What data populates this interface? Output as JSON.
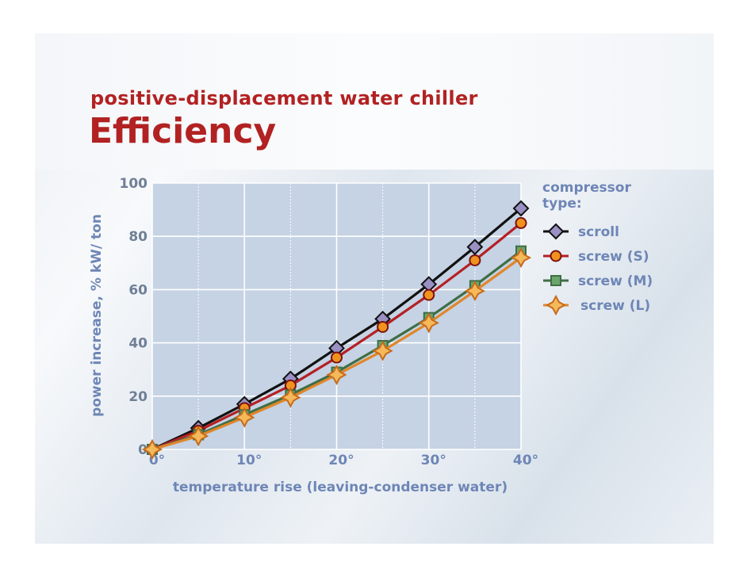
{
  "slide": {
    "subtitle": "positive-displacement water chiller",
    "title": "Efficiency"
  },
  "chart_data": {
    "type": "line",
    "xlabel": "temperature rise (leaving-condenser water)",
    "ylabel": "power increase, % kW/ ton",
    "xlim": [
      0,
      40
    ],
    "ylim": [
      0,
      100
    ],
    "x": [
      0,
      5,
      10,
      15,
      20,
      25,
      30,
      35,
      40
    ],
    "x_tick_values": [
      0,
      10,
      20,
      30,
      40
    ],
    "x_tick_labels": [
      "0°",
      "10°",
      "20°",
      "30°",
      "40°"
    ],
    "y_tick_values": [
      0,
      20,
      40,
      60,
      80,
      100
    ],
    "y_tick_labels": [
      "0",
      "20",
      "40",
      "60",
      "80",
      "100"
    ],
    "grid": true,
    "legend_title": "compressor type:",
    "legend_position": "right",
    "series": [
      {
        "name": "scroll",
        "marker": "diamond",
        "color": "#111111",
        "marker_fill": "#9a90c4",
        "values": [
          0,
          8,
          17,
          26.5,
          38,
          49,
          62,
          76,
          90.5
        ]
      },
      {
        "name": "screw (S)",
        "marker": "circle",
        "color": "#b52024",
        "marker_fill": "#f0921e",
        "values": [
          0,
          7,
          15.5,
          24,
          34.5,
          46,
          58,
          71,
          85
        ]
      },
      {
        "name": "screw (M)",
        "marker": "square",
        "color": "#3f6e45",
        "marker_fill": "#6aa56c",
        "values": [
          0,
          5.5,
          13,
          20.5,
          29,
          39,
          49.5,
          61.5,
          74.5
        ]
      },
      {
        "name": "screw (L)",
        "marker": "star",
        "color": "#e0862a",
        "marker_fill": "#f4b95a",
        "values": [
          0,
          5,
          12,
          19.5,
          28,
          37,
          47.5,
          59.5,
          72
        ]
      }
    ]
  }
}
